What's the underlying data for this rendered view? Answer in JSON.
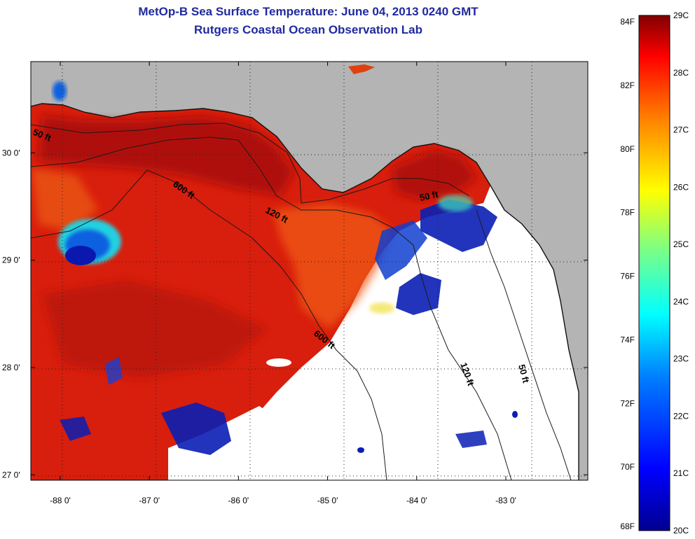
{
  "title": {
    "line1": "MetOp-B Sea Surface Temperature:  June 04, 2013 0240 GMT",
    "line2": "Rutgers Coastal Ocean Observation Lab"
  },
  "axes": {
    "x_ticks": [
      {
        "lon": -88,
        "label": "-88 0'"
      },
      {
        "lon": -87,
        "label": "-87 0'"
      },
      {
        "lon": -86,
        "label": "-86 0'"
      },
      {
        "lon": -85,
        "label": "-85 0'"
      },
      {
        "lon": -84,
        "label": "-84 0'"
      },
      {
        "lon": -83,
        "label": "-83 0'"
      }
    ],
    "y_ticks": [
      {
        "lat": 30,
        "label": "30 0'"
      },
      {
        "lat": 29,
        "label": "29 0'"
      },
      {
        "lat": 28,
        "label": "28 0'"
      },
      {
        "lat": 27,
        "label": "27 0'"
      }
    ],
    "lon_range": [
      -88.33,
      -82.08
    ],
    "lat_range": [
      26.95,
      30.85
    ]
  },
  "contour_labels": [
    {
      "text": "50 ft"
    },
    {
      "text": "600 ft"
    },
    {
      "text": "120 ft"
    },
    {
      "text": "50 ft"
    },
    {
      "text": "600 ft"
    },
    {
      "text": "120 ft"
    },
    {
      "text": "50 ft"
    }
  ],
  "colorbar": {
    "fahrenheit": [
      {
        "value": 84,
        "label": "84F"
      },
      {
        "value": 82,
        "label": "82F"
      },
      {
        "value": 80,
        "label": "80F"
      },
      {
        "value": 78,
        "label": "78F"
      },
      {
        "value": 76,
        "label": "76F"
      },
      {
        "value": 74,
        "label": "74F"
      },
      {
        "value": 72,
        "label": "72F"
      },
      {
        "value": 70,
        "label": "70F"
      },
      {
        "value": 68,
        "label": "68F"
      }
    ],
    "celsius": [
      {
        "value": 29,
        "label": "29C"
      },
      {
        "value": 28,
        "label": "28C"
      },
      {
        "value": 27,
        "label": "27C"
      },
      {
        "value": 26,
        "label": "26C"
      },
      {
        "value": 25,
        "label": "25C"
      },
      {
        "value": 24,
        "label": "24C"
      },
      {
        "value": 23,
        "label": "23C"
      },
      {
        "value": 22,
        "label": "22C"
      },
      {
        "value": 21,
        "label": "21C"
      },
      {
        "value": 20,
        "label": "20C"
      }
    ],
    "colormap": [
      "#00008f",
      "#0000ff",
      "#0080ff",
      "#00ffff",
      "#80ff80",
      "#ffff00",
      "#ff8000",
      "#ff0000",
      "#800000"
    ],
    "range_c": [
      20,
      29
    ]
  },
  "colors": {
    "land": "#b4b4b4",
    "ocean_warm": "#d81e0c",
    "ocean_hot": "#b0100a",
    "ocean_mid": "#f0500a",
    "cloud": "#ffffff",
    "cool": "#0a1eb4",
    "title": "#1f2a9e"
  }
}
